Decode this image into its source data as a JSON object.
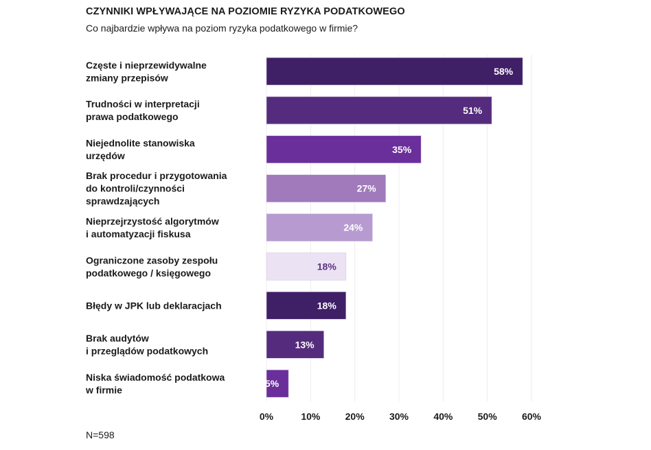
{
  "chart_data": {
    "type": "bar",
    "orientation": "horizontal",
    "title": "CZYNNIKI WPŁYWAJĄCE NA POZIOMIE RYZYKA PODATKOWEGO",
    "subtitle": "Co najbardzie wpływa na poziom ryzyka podatkowego w firmie?",
    "categories": [
      [
        "Częste i nieprzewidywalne",
        "zmiany przepisów"
      ],
      [
        "Trudności w interpretacji",
        "prawa podatkowego"
      ],
      [
        "Niejednolite stanowiska",
        "urzędów"
      ],
      [
        "Brak procedur i przygotowania",
        "do  kontroli/czynności",
        "sprawdzających"
      ],
      [
        "Nieprzejrzystość algorytmów",
        "i automatyzacji fiskusa"
      ],
      [
        "Ograniczone zasoby zespołu",
        "podatkowego / księgowego"
      ],
      [
        "Błędy w JPK lub deklaracjach"
      ],
      [
        "Brak audytów",
        "i przeglądów podatkowych"
      ],
      [
        "Niska świadomość podatkowa",
        "w firmie"
      ]
    ],
    "values": [
      58,
      51,
      35,
      27,
      24,
      18,
      18,
      13,
      5
    ],
    "value_labels": [
      "58%",
      "51%",
      "35%",
      "27%",
      "24%",
      "18%",
      "18%",
      "13%",
      "5%"
    ],
    "colors": [
      "#3f1f66",
      "#552c7d",
      "#6a2f9a",
      "#a07abb",
      "#b79bd0",
      "#ebe2f3",
      "#3f1f66",
      "#552c7d",
      "#6a2f9a"
    ],
    "label_colors": [
      "#ffffff",
      "#ffffff",
      "#ffffff",
      "#ffffff",
      "#ffffff",
      "#5a3384",
      "#ffffff",
      "#ffffff",
      "#ffffff"
    ],
    "xlim": [
      0,
      60
    ],
    "xticks": [
      "0%",
      "10%",
      "20%",
      "30%",
      "40%",
      "50%",
      "60%"
    ],
    "grid": true,
    "note": "N=598"
  }
}
